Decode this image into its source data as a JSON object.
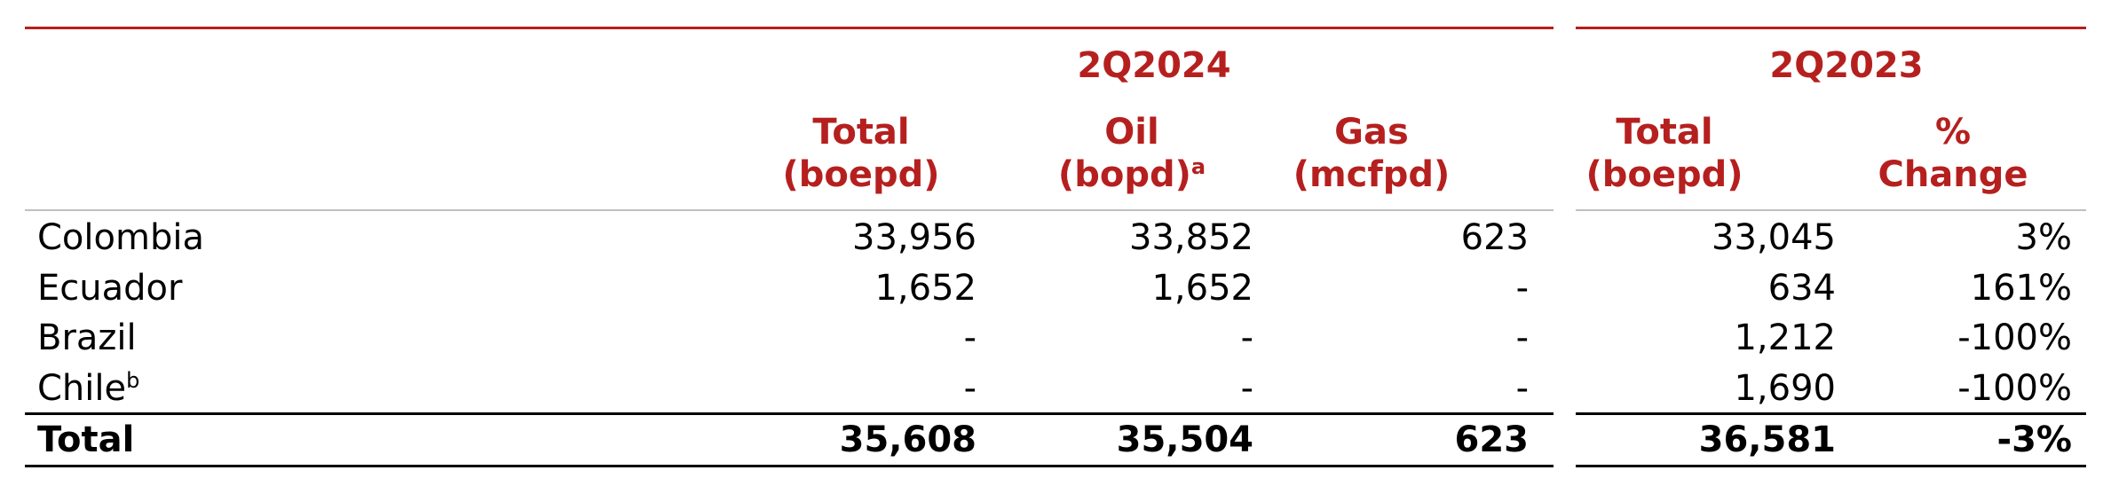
{
  "groups": {
    "current": "2Q2024",
    "prior": "2Q2023"
  },
  "columns": {
    "current_total": {
      "line1": "Total",
      "line2": "(boepd)"
    },
    "current_oil": {
      "line1": "Oil",
      "line2": "(bopd)",
      "sup": "a"
    },
    "current_gas": {
      "line1": "Gas",
      "line2": "(mcfpd)"
    },
    "prior_total": {
      "line1": "Total",
      "line2": "(boepd)"
    },
    "pct_change": {
      "line1": "%",
      "line2": "Change"
    }
  },
  "rows": [
    {
      "label": "Colombia",
      "sup": "",
      "total": "33,956",
      "oil": "33,852",
      "gas": "623",
      "prior_total": "33,045",
      "change": "3%"
    },
    {
      "label": "Ecuador",
      "sup": "",
      "total": "1,652",
      "oil": "1,652",
      "gas": "-",
      "prior_total": "634",
      "change": "161%"
    },
    {
      "label": "Brazil",
      "sup": "",
      "total": "-",
      "oil": "-",
      "gas": "-",
      "prior_total": "1,212",
      "change": "-100%"
    },
    {
      "label": "Chile",
      "sup": "b",
      "total": "-",
      "oil": "-",
      "gas": "-",
      "prior_total": "1,690",
      "change": "-100%"
    }
  ],
  "total_row": {
    "label": "Total",
    "total": "35,608",
    "oil": "35,504",
    "gas": "623",
    "prior_total": "36,581",
    "change": "-3%"
  },
  "colors": {
    "header_red": "#b5201f",
    "rule_grey": "#bfbfbf",
    "rule_black": "#000000"
  }
}
